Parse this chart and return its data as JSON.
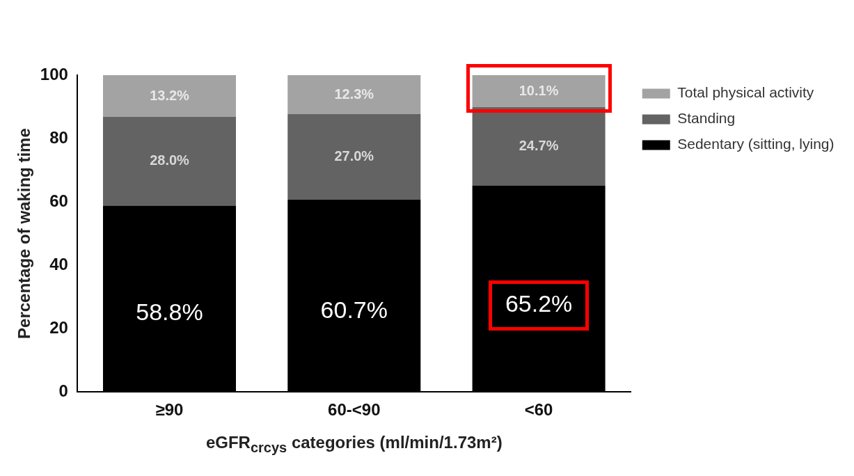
{
  "chart_data": {
    "type": "bar",
    "stacked": true,
    "categories": [
      "≥90",
      "60-<90",
      "<60"
    ],
    "xlabel": "eGFR$_{crcys}$ categories (ml/min/1.73m²)",
    "ylabel": "Percentage of waking time",
    "ylim": [
      0,
      100
    ],
    "yticks": [
      0,
      20,
      40,
      60,
      80,
      100
    ],
    "grid": false,
    "legend": "right",
    "series": [
      {
        "name": "Sedentary (sitting, lying)",
        "color": "#000000",
        "values": [
          58.8,
          60.7,
          65.2
        ],
        "value_labels": [
          "58.8%",
          "60.7%",
          "65.2%"
        ]
      },
      {
        "name": "Standing",
        "color": "#636363",
        "values": [
          28.0,
          27.0,
          24.7
        ],
        "value_labels": [
          "28.0%",
          "27.0%",
          "24.7%"
        ]
      },
      {
        "name": "Total physical activity",
        "color": "#a3a3a3",
        "values": [
          13.2,
          12.3,
          10.1
        ],
        "value_labels": [
          "13.2%",
          "12.3%",
          "10.1%"
        ]
      }
    ]
  }
}
